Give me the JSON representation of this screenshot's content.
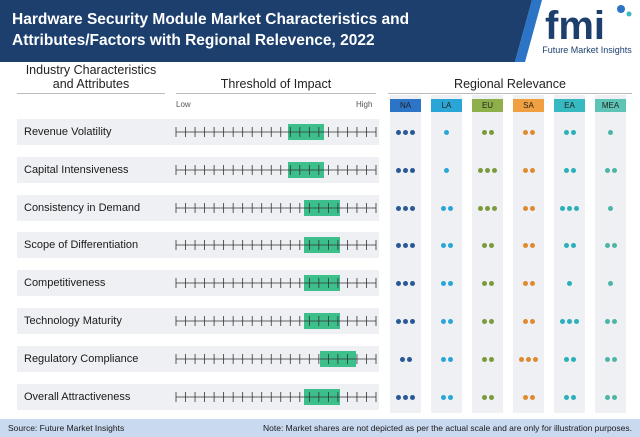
{
  "title": "Hardware Security Module Market Characteristics and Attributes/Factors with Regional Relevence, 2022",
  "logo": {
    "text": "fmi",
    "subtitle": "Future Market Insights"
  },
  "headers": {
    "attributes": "Industry Characteristics and Attributes",
    "threshold": "Threshold of Impact",
    "regional": "Regional Relevance"
  },
  "scale": {
    "low": "Low",
    "high": "High"
  },
  "regions": [
    {
      "label": "NA",
      "color": "#2b5896"
    },
    {
      "label": "LA",
      "color": "#2aa6d6"
    },
    {
      "label": "EU",
      "color": "#7b9a3a"
    },
    {
      "label": "SA",
      "color": "#e08a30"
    },
    {
      "label": "EA",
      "color": "#2ab0b8"
    },
    {
      "label": "MEA",
      "color": "#4cb5a8"
    }
  ],
  "region_header_colors": [
    "#2b74c6",
    "#2aa6d6",
    "#8db04a",
    "#f0a040",
    "#36b9c0",
    "#5ec4b5"
  ],
  "threshold_color": "#3dbf8c",
  "rows": [
    {
      "label": "Revenue Volatility",
      "impact_start": 0.56,
      "impact_end": 0.74,
      "dots": [
        3,
        1,
        2,
        2,
        2,
        1
      ]
    },
    {
      "label": "Capital Intensiveness",
      "impact_start": 0.56,
      "impact_end": 0.74,
      "dots": [
        3,
        1,
        3,
        2,
        2,
        2
      ]
    },
    {
      "label": "Consistency in Demand",
      "impact_start": 0.64,
      "impact_end": 0.82,
      "dots": [
        3,
        2,
        3,
        2,
        3,
        1
      ]
    },
    {
      "label": "Scope of Differentiation",
      "impact_start": 0.64,
      "impact_end": 0.82,
      "dots": [
        3,
        2,
        2,
        2,
        2,
        2
      ]
    },
    {
      "label": "Competitiveness",
      "impact_start": 0.64,
      "impact_end": 0.82,
      "dots": [
        3,
        2,
        2,
        2,
        1,
        1
      ]
    },
    {
      "label": "Technology Maturity",
      "impact_start": 0.64,
      "impact_end": 0.82,
      "dots": [
        3,
        2,
        2,
        2,
        3,
        2
      ]
    },
    {
      "label": "Regulatory Compliance",
      "impact_start": 0.72,
      "impact_end": 0.9,
      "dots": [
        2,
        2,
        2,
        3,
        2,
        2
      ]
    },
    {
      "label": "Overall Attractiveness",
      "impact_start": 0.64,
      "impact_end": 0.82,
      "dots": [
        3,
        2,
        2,
        2,
        2,
        2
      ]
    }
  ],
  "footer": {
    "source": "Source: Future Market Insights",
    "note": "Note: Market shares are not depicted as per the actual scale and are only for illustration purposes."
  }
}
